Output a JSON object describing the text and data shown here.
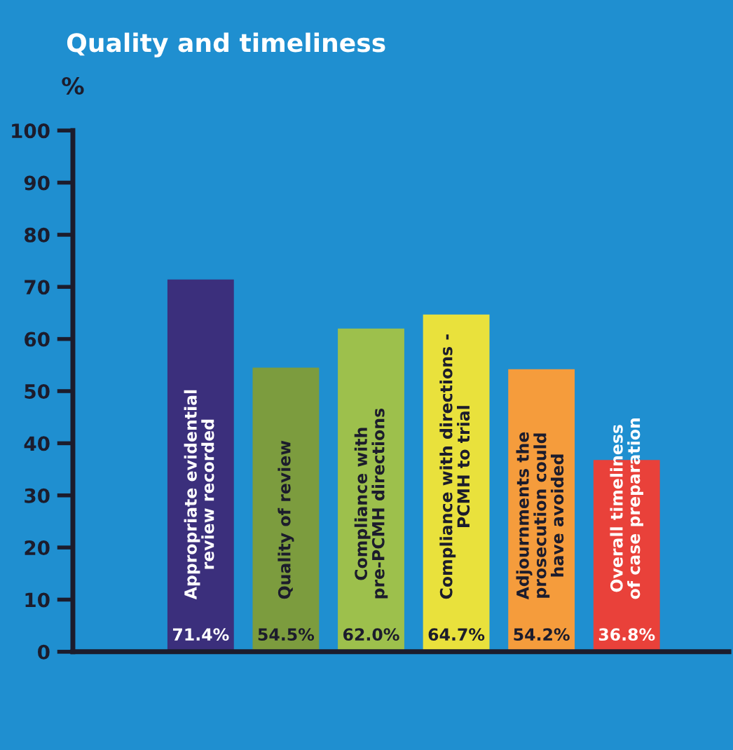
{
  "chart_data": {
    "type": "bar",
    "title": "Quality and timeliness",
    "ylabel": "%",
    "categories": [
      "Appropriate evidential\nreview recorded",
      "Quality of review",
      "Compliance with\npre-PCMH directions",
      "Compliance with directions -\nPCMH to trial",
      "Adjournments the\nprosecution could\nhave avoided",
      "Overall timeliness\nof case preparation"
    ],
    "values": [
      71.4,
      54.5,
      62.0,
      64.7,
      54.2,
      36.8
    ],
    "value_labels": [
      "71.4%",
      "54.5%",
      "62.0%",
      "64.7%",
      "54.2%",
      "36.8%"
    ],
    "colors": [
      "#3b2f7c",
      "#7c9c3e",
      "#9dc04c",
      "#e9e13c",
      "#f59c3c",
      "#e9413a"
    ],
    "ylim": [
      0,
      100
    ],
    "yticks": [
      0,
      10,
      20,
      30,
      40,
      50,
      60,
      70,
      80,
      90,
      100
    ],
    "grid": false,
    "legend": false
  }
}
